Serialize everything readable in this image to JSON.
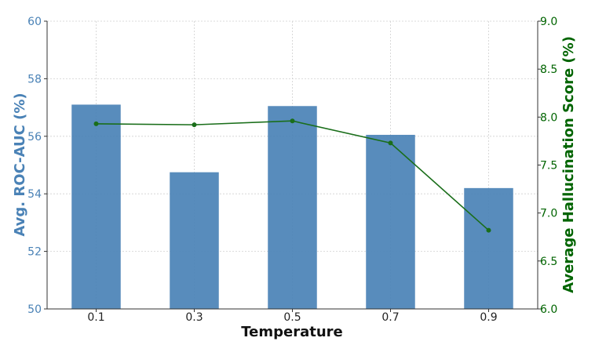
{
  "chart_data": {
    "type": "bar",
    "categories": [
      "0.1",
      "0.3",
      "0.5",
      "0.7",
      "0.9"
    ],
    "xlabel": "Temperature",
    "series": [
      {
        "kind": "bar",
        "axis": "left",
        "values": [
          57.1,
          54.75,
          57.05,
          56.05,
          54.2
        ],
        "color": "#4a82b6"
      },
      {
        "kind": "line",
        "axis": "right",
        "values": [
          7.93,
          7.92,
          7.96,
          7.73,
          6.82
        ],
        "color": "#1a6e1a"
      }
    ],
    "y_left": {
      "label": "Avg. ROC-AUC (%)",
      "ylim": [
        50,
        60
      ],
      "ticks": [
        "50",
        "52",
        "54",
        "56",
        "58",
        "60"
      ],
      "color": "#4a82b6"
    },
    "y_right": {
      "label": "Average Hallucination Score (%)",
      "ylim": [
        6.0,
        9.0
      ],
      "ticks": [
        "6.0",
        "6.5",
        "7.0",
        "7.5",
        "8.0",
        "8.5",
        "9.0"
      ],
      "color": "#006400"
    },
    "grid": true,
    "legend": "none"
  }
}
